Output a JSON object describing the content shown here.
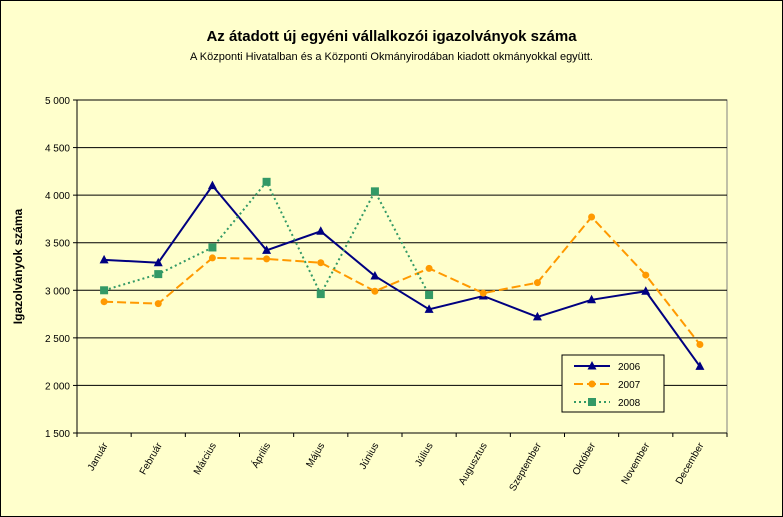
{
  "chart_data": {
    "type": "line",
    "title": "Az átadott új egyéni vállalkozói  igazolványok száma",
    "subtitle": "A Központi Hivatalban és a Központi Okmányirodában kiadott okmányokkal együtt.",
    "ylabel": "Igazolványok száma",
    "xlabel": "",
    "categories": [
      "Január",
      "Február",
      "Március",
      "Április",
      "Május",
      "Június",
      "Július",
      "Augusztus",
      "Szeptember",
      "Október",
      "November",
      "December"
    ],
    "ylim": [
      1500,
      5000
    ],
    "yticks": [
      1500,
      2000,
      2500,
      3000,
      3500,
      4000,
      4500,
      5000
    ],
    "ytick_labels": [
      "1 500",
      "2 000",
      "2 500",
      "3 000",
      "3 500",
      "4 000",
      "4 500",
      "5 000"
    ],
    "grid": true,
    "legend_position": "bottom-right",
    "series": [
      {
        "name": "2006",
        "color": "#000080",
        "dash": "none",
        "marker": "triangle",
        "values": [
          3320,
          3290,
          4100,
          3420,
          3620,
          3150,
          2800,
          2940,
          2720,
          2900,
          2990,
          2200
        ]
      },
      {
        "name": "2007",
        "color": "#ff9900",
        "dash": "dashed",
        "marker": "circle",
        "values": [
          2880,
          2860,
          3340,
          3330,
          3290,
          2990,
          3230,
          2970,
          3080,
          3770,
          3160,
          2430
        ]
      },
      {
        "name": "2008",
        "color": "#339966",
        "dash": "dotted",
        "marker": "square",
        "values": [
          3000,
          3170,
          3450,
          4140,
          2960,
          4040,
          2950,
          null,
          null,
          null,
          null,
          null
        ]
      }
    ]
  }
}
